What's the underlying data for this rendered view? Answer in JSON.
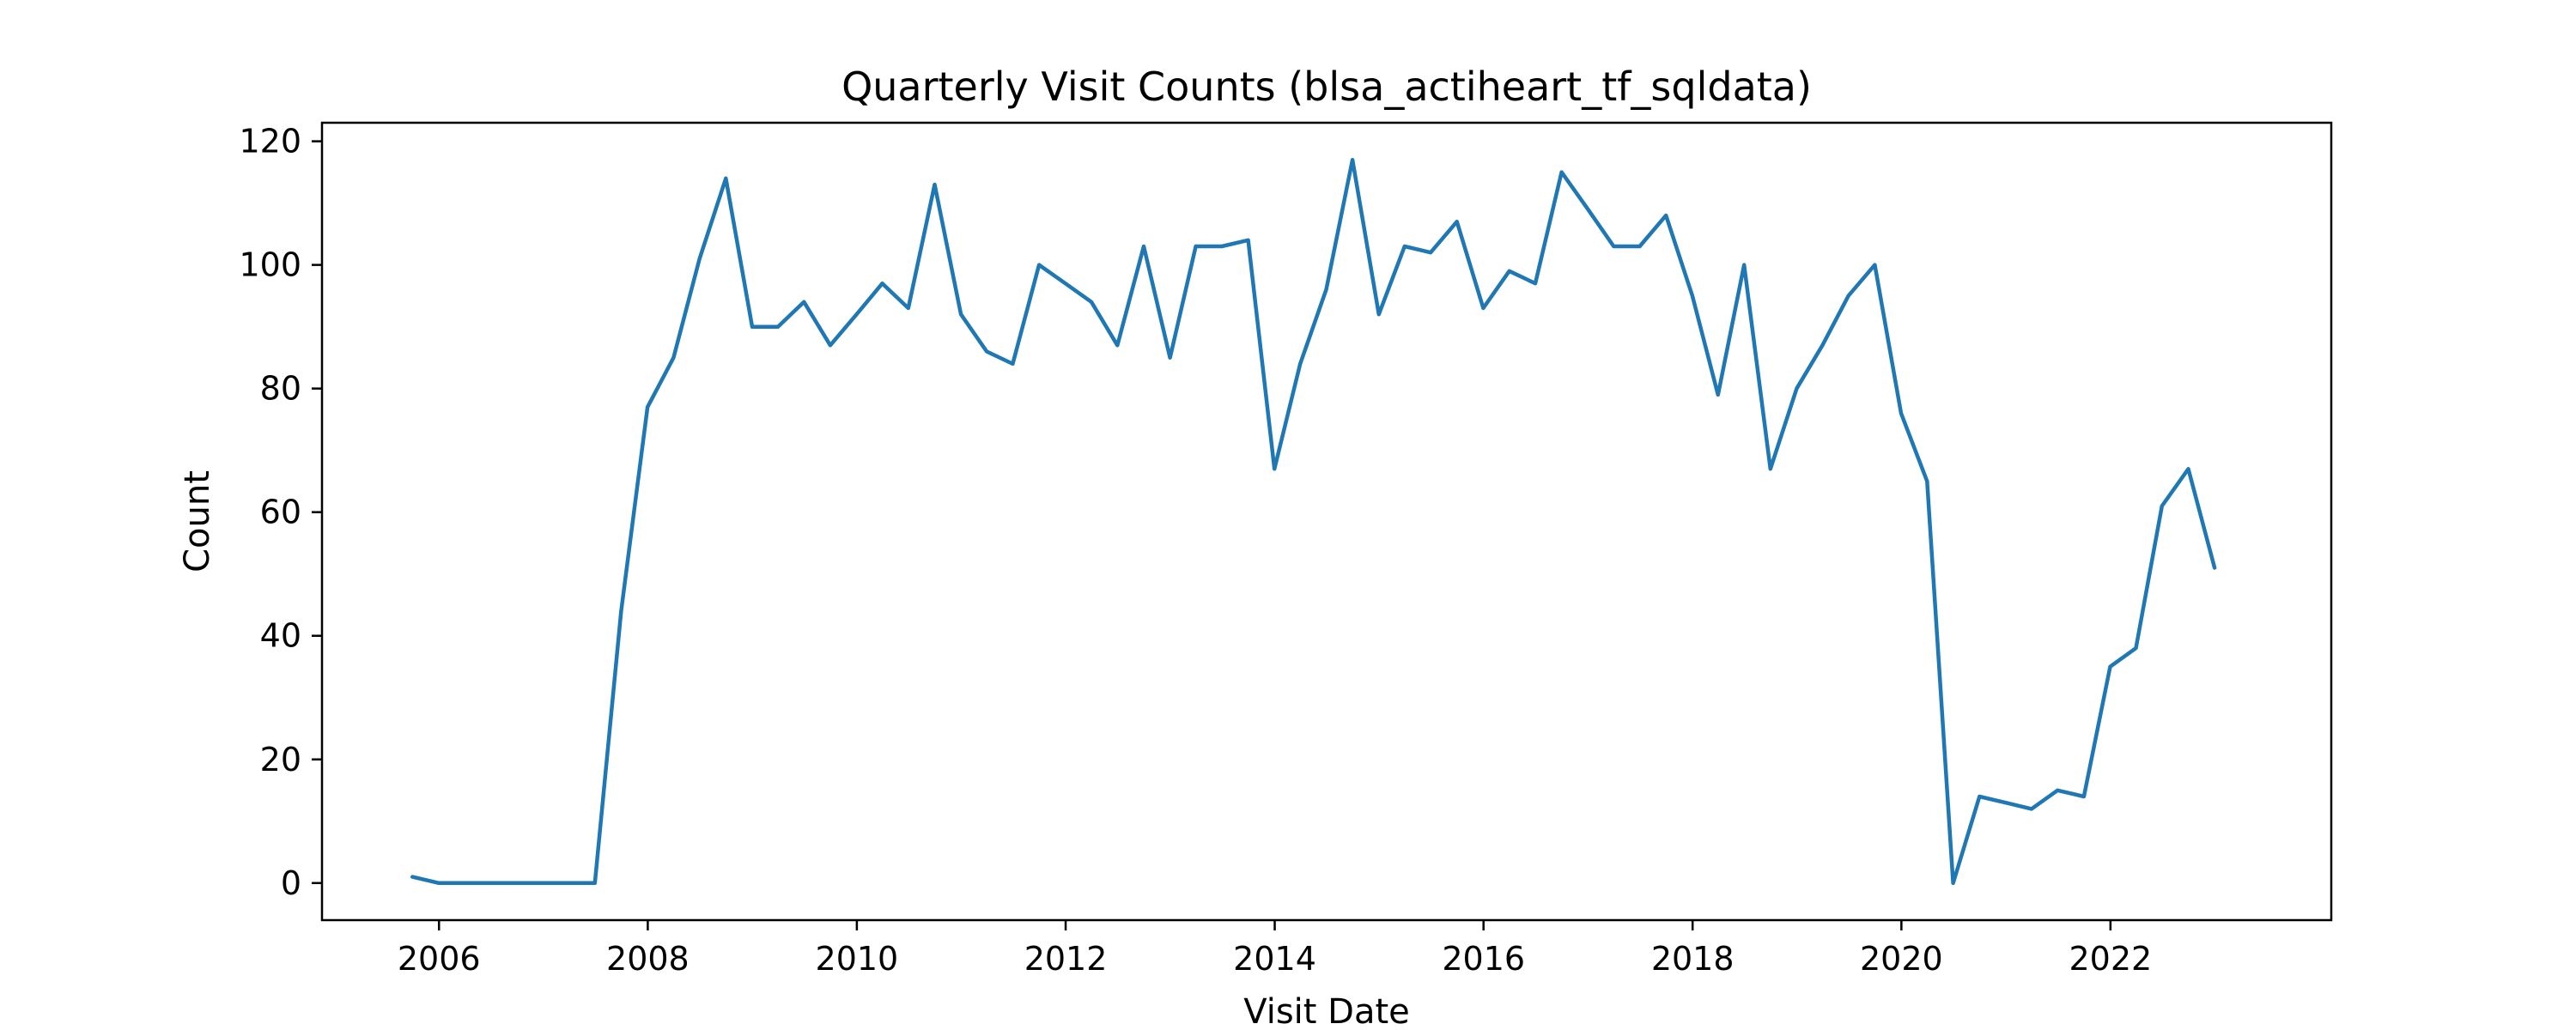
{
  "chart_data": {
    "type": "line",
    "title": "Quarterly Visit Counts (blsa_actiheart_tf_sqldata)",
    "xlabel": "Visit Date",
    "ylabel": "Count",
    "x_axis_type": "date",
    "xlim": [
      "2004-11-18",
      "2024-02-12"
    ],
    "ylim": [
      -6,
      123
    ],
    "xticks": [
      "2006",
      "2008",
      "2010",
      "2012",
      "2014",
      "2016",
      "2018",
      "2020",
      "2022"
    ],
    "yticks": [
      0,
      20,
      40,
      60,
      80,
      100,
      120
    ],
    "grid": false,
    "legend": "none",
    "colors": {
      "line": "#1f77b4",
      "axes": "#000000",
      "background": "#ffffff"
    },
    "series": [
      {
        "x": [
          "2005-09-30",
          "2005-12-31",
          "2006-03-31",
          "2006-06-30",
          "2006-09-30",
          "2006-12-31",
          "2007-03-31",
          "2007-06-30",
          "2007-09-30",
          "2007-12-31",
          "2008-03-31",
          "2008-06-30",
          "2008-09-30",
          "2008-12-31",
          "2009-03-31",
          "2009-06-30",
          "2009-09-30",
          "2009-12-31",
          "2010-03-31",
          "2010-06-30",
          "2010-09-30",
          "2010-12-31",
          "2011-03-31",
          "2011-06-30",
          "2011-09-30",
          "2011-12-31",
          "2012-03-31",
          "2012-06-30",
          "2012-09-30",
          "2012-12-31",
          "2013-03-31",
          "2013-06-30",
          "2013-09-30",
          "2013-12-31",
          "2014-03-31",
          "2014-06-30",
          "2014-09-30",
          "2014-12-31",
          "2015-03-31",
          "2015-06-30",
          "2015-09-30",
          "2015-12-31",
          "2016-03-31",
          "2016-06-30",
          "2016-09-30",
          "2016-12-31",
          "2017-03-31",
          "2017-06-30",
          "2017-09-30",
          "2017-12-31",
          "2018-03-31",
          "2018-06-30",
          "2018-09-30",
          "2018-12-31",
          "2019-03-31",
          "2019-06-30",
          "2019-09-30",
          "2019-12-31",
          "2020-03-31",
          "2020-06-30",
          "2020-09-30",
          "2020-12-31",
          "2021-03-31",
          "2021-06-30",
          "2021-09-30",
          "2021-12-31",
          "2022-03-31",
          "2022-06-30",
          "2022-09-30",
          "2022-12-31"
        ],
        "y": [
          1,
          0,
          0,
          0,
          0,
          0,
          0,
          0,
          44,
          77,
          85,
          101,
          114,
          90,
          90,
          94,
          87,
          92,
          97,
          93,
          113,
          92,
          86,
          84,
          100,
          97,
          94,
          87,
          103,
          85,
          103,
          103,
          104,
          67,
          84,
          96,
          117,
          92,
          103,
          102,
          107,
          93,
          99,
          97,
          115,
          109,
          103,
          103,
          108,
          95,
          79,
          100,
          67,
          80,
          87,
          95,
          100,
          76,
          65,
          0,
          14,
          13,
          12,
          15,
          14,
          35,
          38,
          61,
          67,
          51
        ]
      }
    ]
  }
}
